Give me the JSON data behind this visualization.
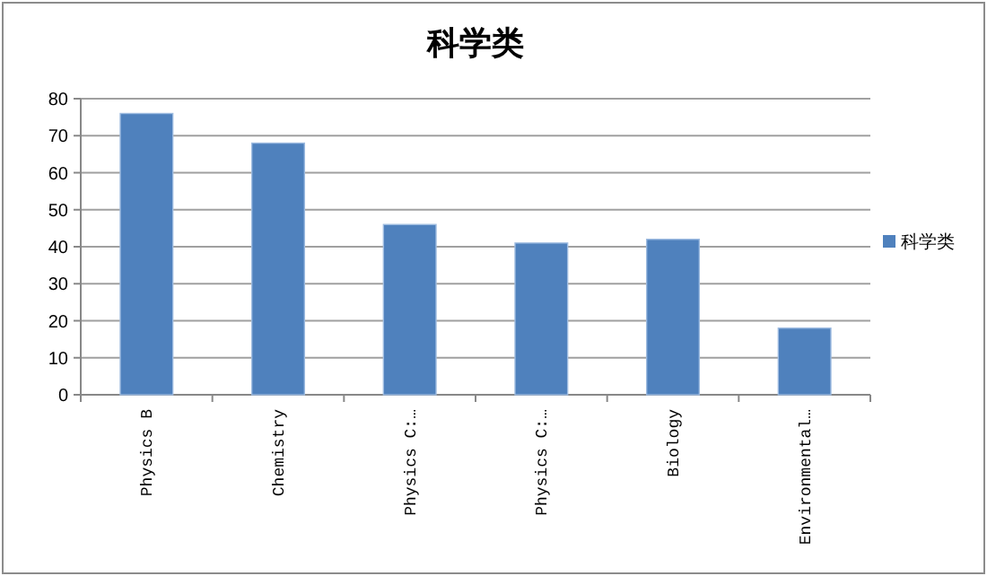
{
  "chart_data": {
    "type": "bar",
    "title": "科学类",
    "categories": [
      "Physics B",
      "Chemistry",
      "Physics C:…",
      "Physics C:…",
      "Biology",
      "Environmental…"
    ],
    "series": [
      {
        "name": "科学类",
        "color": "#4f81bd",
        "values": [
          76,
          68,
          46,
          41,
          42,
          18
        ]
      }
    ],
    "ylim": [
      0,
      80
    ],
    "yticks": [
      0,
      10,
      20,
      30,
      40,
      50,
      60,
      70,
      80
    ],
    "grid": "y",
    "legend": "right"
  }
}
